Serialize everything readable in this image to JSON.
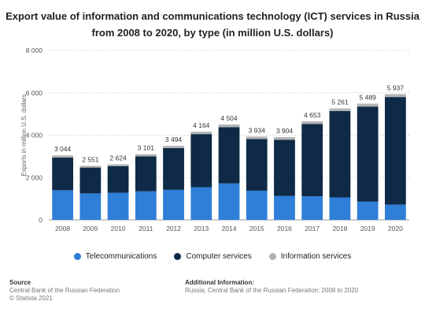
{
  "chart_data": {
    "type": "bar",
    "stacked": true,
    "title": "Export value of information and communications technology (ICT) services in Russia from 2008 to 2020, by type (in million U.S. dollars)",
    "title_lines": [
      "Export value of information and communications technology (ICT) services in Russia",
      "from 2008 to 2020, by type (in million U.S. dollars)"
    ],
    "xlabel": "",
    "ylabel": "Exports in million U.S. dollars",
    "ylim": [
      0,
      8000
    ],
    "yticks": [
      0,
      2000,
      4000,
      6000,
      8000
    ],
    "ytick_labels": [
      "0",
      "2 000",
      "4 000",
      "6 000",
      "8 000"
    ],
    "grid": true,
    "legend_position": "bottom",
    "categories": [
      "2008",
      "2009",
      "2010",
      "2011",
      "2012",
      "2013",
      "2014",
      "2015",
      "2016",
      "2017",
      "2018",
      "2019",
      "2020"
    ],
    "series": [
      {
        "name": "Telecommunications",
        "color": "#2f7ed8",
        "values": [
          1400,
          1250,
          1280,
          1350,
          1420,
          1540,
          1720,
          1380,
          1130,
          1110,
          1060,
          860,
          720
        ]
      },
      {
        "name": "Computer services",
        "color": "#0e2a47",
        "values": [
          1540,
          1220,
          1260,
          1650,
          1970,
          2510,
          2660,
          2440,
          2650,
          3420,
          4080,
          4490,
          5080
        ]
      },
      {
        "name": "Information services",
        "color": "#b3b3b3",
        "values": [
          104,
          81,
          84,
          101,
          104,
          114,
          124,
          114,
          124,
          123,
          121,
          139,
          137
        ]
      }
    ],
    "totals": [
      3044,
      2551,
      2624,
      3101,
      3494,
      4164,
      4504,
      3934,
      3904,
      4653,
      5261,
      5489,
      5937
    ],
    "total_labels": [
      "3 044",
      "2 551",
      "2 624",
      "3 101",
      "3 494",
      "4 164",
      "4 504",
      "3 934",
      "3 904",
      "4 653",
      "5 261",
      "5 489",
      "5 937"
    ]
  },
  "legend": {
    "items": [
      {
        "label": "Telecommunications",
        "color": "#2f7ed8"
      },
      {
        "label": "Computer services",
        "color": "#0e2a47"
      },
      {
        "label": "Information services",
        "color": "#b3b3b3"
      }
    ]
  },
  "footer": {
    "source_heading": "Source",
    "source_line1": "Central Bank of the Russian Federation",
    "source_line2": "© Statista 2021",
    "info_heading": "Additional Information:",
    "info_line1": "Russia; Central Bank of the Russian Federation; 2008 to 2020"
  }
}
